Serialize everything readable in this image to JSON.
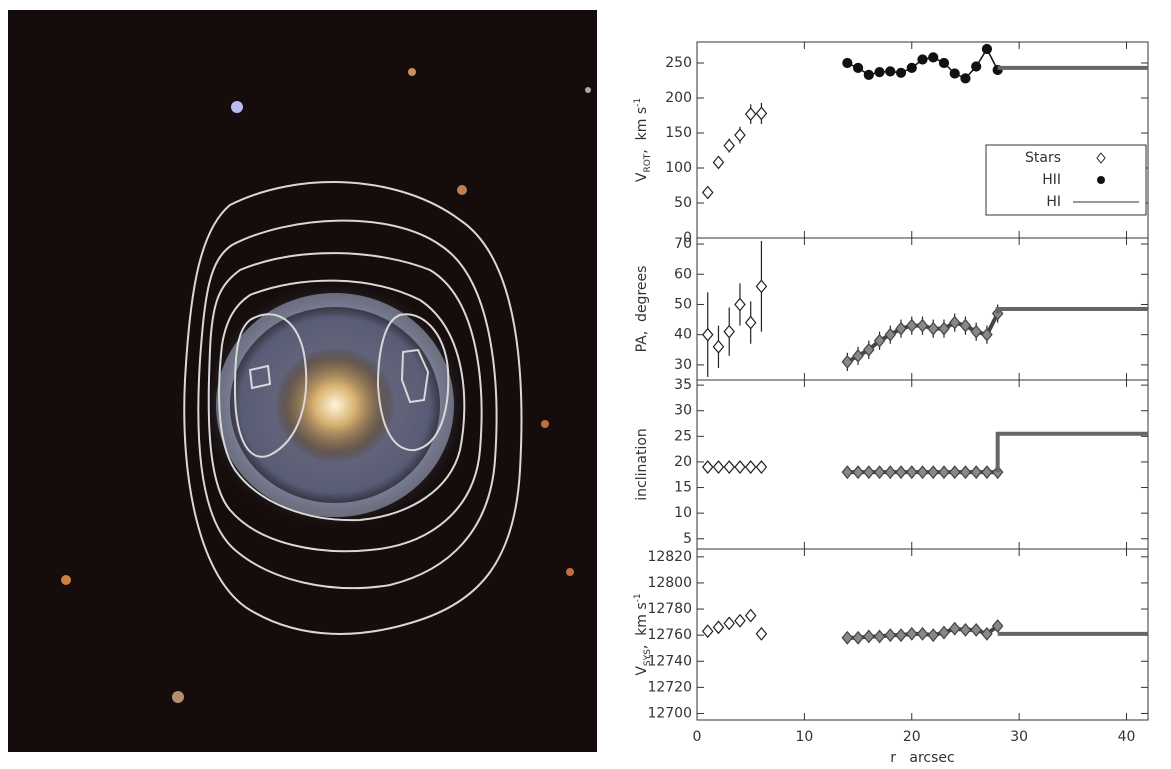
{
  "chart_data": [
    {
      "type": "scatter",
      "xlim": [
        0,
        42
      ],
      "ylim": [
        0,
        280
      ],
      "yticks": [
        0,
        50,
        100,
        150,
        200,
        250
      ],
      "y_label": [
        "V",
        "ROT",
        ",  km s",
        "-1"
      ],
      "legend": "right",
      "series": [
        {
          "name": "Stars",
          "marker": "diamond",
          "color": "#222",
          "fill": "#fff",
          "connect": false,
          "x": [
            1,
            2,
            3,
            4,
            5,
            6
          ],
          "values": [
            65,
            108,
            132,
            147,
            177,
            178
          ],
          "errors": [
            8,
            8,
            10,
            12,
            14,
            15
          ]
        },
        {
          "name": "HII",
          "marker": "circle",
          "color": "#111",
          "fill": "#111",
          "connect": true,
          "x": [
            14,
            15,
            16,
            17,
            18,
            19,
            20,
            21,
            22,
            23,
            24,
            25,
            26,
            27,
            28
          ],
          "values": [
            250,
            243,
            233,
            237,
            238,
            236,
            243,
            255,
            258,
            250,
            235,
            228,
            245,
            270,
            240
          ]
        },
        {
          "name": "HI",
          "marker": "none",
          "color": "#666",
          "fill": "none",
          "connect": true,
          "x": [
            28,
            42
          ],
          "values": [
            243,
            243
          ]
        }
      ]
    },
    {
      "type": "scatter",
      "xlim": [
        0,
        42
      ],
      "ylim": [
        25,
        72
      ],
      "yticks": [
        30,
        40,
        50,
        60,
        70
      ],
      "y_label": [
        "PA,  degrees"
      ],
      "series": [
        {
          "marker": "diamond",
          "color": "#222",
          "fill": "#fff",
          "connect": false,
          "x": [
            1,
            2,
            3,
            4,
            5,
            6
          ],
          "values": [
            40,
            36,
            41,
            50,
            44,
            56
          ],
          "errors": [
            14,
            7,
            8,
            7,
            7,
            15
          ]
        },
        {
          "marker": "diamond",
          "color": "#444",
          "fill": "#888",
          "connect": true,
          "x": [
            14,
            15,
            16,
            17,
            18,
            19,
            20,
            21,
            22,
            23,
            24,
            25,
            26,
            27,
            28
          ],
          "values": [
            31,
            33,
            35,
            38,
            40,
            42,
            43,
            43,
            42,
            42,
            44,
            43,
            41,
            40,
            47
          ],
          "errors": [
            3,
            3,
            3,
            3,
            3,
            3,
            3,
            3,
            3,
            3,
            3,
            3,
            3,
            3,
            3
          ]
        },
        {
          "marker": "none",
          "color": "#666",
          "fill": "none",
          "connect": true,
          "x": [
            28,
            28,
            42
          ],
          "values": [
            47,
            48.5,
            48.5
          ]
        }
      ]
    },
    {
      "type": "scatter",
      "xlim": [
        0,
        42
      ],
      "ylim": [
        3,
        36
      ],
      "yticks": [
        5,
        10,
        15,
        20,
        25,
        30,
        35
      ],
      "y_label": [
        "inclination"
      ],
      "series": [
        {
          "marker": "diamond",
          "color": "#222",
          "fill": "#fff",
          "connect": false,
          "x": [
            1,
            2,
            3,
            4,
            5,
            6
          ],
          "values": [
            19,
            19,
            19,
            19,
            19,
            19
          ]
        },
        {
          "marker": "diamond",
          "color": "#444",
          "fill": "#888",
          "connect": true,
          "x": [
            14,
            15,
            16,
            17,
            18,
            19,
            20,
            21,
            22,
            23,
            24,
            25,
            26,
            27,
            28
          ],
          "values": [
            18,
            18,
            18,
            18,
            18,
            18,
            18,
            18,
            18,
            18,
            18,
            18,
            18,
            18,
            18
          ]
        },
        {
          "marker": "none",
          "color": "#666",
          "fill": "none",
          "connect": true,
          "x": [
            28,
            28,
            42
          ],
          "values": [
            18,
            25.5,
            25.5
          ]
        }
      ]
    },
    {
      "type": "scatter",
      "xlim": [
        0,
        42
      ],
      "ylim": [
        12695,
        12826
      ],
      "yticks": [
        12700,
        12720,
        12740,
        12760,
        12780,
        12800,
        12820
      ],
      "xticks": [
        0,
        10,
        20,
        30,
        40
      ],
      "x_label": "r   arcsec",
      "y_label": [
        "V",
        "SYS",
        ",  km s",
        "-1"
      ],
      "series": [
        {
          "marker": "diamond",
          "color": "#222",
          "fill": "#fff",
          "connect": false,
          "x": [
            1,
            2,
            3,
            4,
            5,
            6
          ],
          "values": [
            12763,
            12766,
            12769,
            12771,
            12775,
            12761
          ]
        },
        {
          "marker": "diamond",
          "color": "#444",
          "fill": "#888",
          "connect": true,
          "x": [
            14,
            15,
            16,
            17,
            18,
            19,
            20,
            21,
            22,
            23,
            24,
            25,
            26,
            27,
            28
          ],
          "values": [
            12758,
            12758,
            12759,
            12759,
            12760,
            12760,
            12761,
            12761,
            12760,
            12762,
            12765,
            12764,
            12764,
            12761,
            12767
          ]
        },
        {
          "marker": "none",
          "color": "#666",
          "fill": "none",
          "connect": true,
          "x": [
            28,
            42
          ],
          "values": [
            12761,
            12761
          ]
        }
      ]
    }
  ]
}
